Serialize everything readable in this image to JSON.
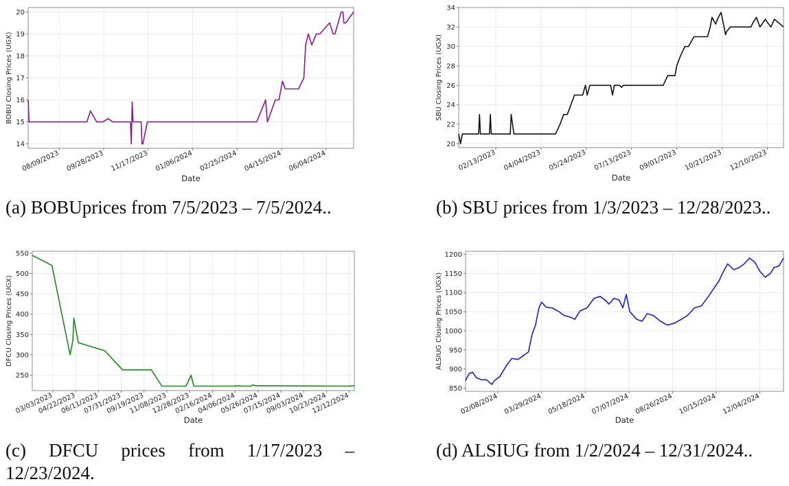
{
  "chart_data": [
    {
      "type": "line",
      "id": "a",
      "caption": "(a) BOBUprices from 7/5/2023 – 7/5/2024..",
      "xlabel": "Date",
      "ylabel": "BOBU Closing Prices (UGX)",
      "color": "#8b1a8b",
      "grid": true,
      "xlim": [
        "2023-07-05",
        "2024-07-05"
      ],
      "ylim": [
        13.8,
        20.2
      ],
      "yticks": [
        14,
        15,
        16,
        17,
        18,
        19,
        20
      ],
      "xticks": [
        "2023-08-09",
        "2023-09-28",
        "2023-11-17",
        "2024-01-06",
        "2024-02-25",
        "2024-04-15",
        "2024-06-04"
      ],
      "xtick_labels": [
        "08/09/2023",
        "09/28/2023",
        "11/17/2023",
        "01/06/2024",
        "02/25/2024",
        "04/15/2024",
        "06/04/2024"
      ],
      "series": [
        {
          "x": [
            "2023-07-05",
            "2023-07-06",
            "2023-07-12",
            "2023-07-20",
            "2023-08-15",
            "2023-09-09",
            "2023-09-13",
            "2023-09-20",
            "2023-09-27",
            "2023-10-03",
            "2023-10-08",
            "2023-10-12",
            "2023-10-16",
            "2023-10-28",
            "2023-10-29",
            "2023-10-30",
            "2023-10-31",
            "2023-11-04",
            "2023-11-09",
            "2023-11-10",
            "2023-11-11",
            "2023-11-16",
            "2023-12-01",
            "2024-01-30",
            "2024-03-18",
            "2024-03-28",
            "2024-03-30",
            "2024-04-08",
            "2024-04-12",
            "2024-04-16",
            "2024-04-19",
            "2024-04-25",
            "2024-04-27",
            "2024-05-04",
            "2024-05-10",
            "2024-05-12",
            "2024-05-15",
            "2024-05-19",
            "2024-05-22",
            "2024-05-24",
            "2024-05-26",
            "2024-05-28",
            "2024-06-08",
            "2024-06-12",
            "2024-06-14",
            "2024-06-21",
            "2024-06-23",
            "2024-06-24",
            "2024-06-26",
            "2024-07-05"
          ],
          "y": [
            16.0,
            15.0,
            15.0,
            15.0,
            15.0,
            15.0,
            15.5,
            15.0,
            15.0,
            15.15,
            15.0,
            15.0,
            15.0,
            15.0,
            14.0,
            15.9,
            15.0,
            15.0,
            15.0,
            14.0,
            14.0,
            15.0,
            15.0,
            15.0,
            15.0,
            16.0,
            15.0,
            16.0,
            16.0,
            16.85,
            16.5,
            16.5,
            16.5,
            16.5,
            17.0,
            18.5,
            19.0,
            18.5,
            18.8,
            19.0,
            19.0,
            19.0,
            19.5,
            19.0,
            19.0,
            20.0,
            20.0,
            19.5,
            19.5,
            20.0
          ]
        }
      ]
    },
    {
      "type": "line",
      "id": "b",
      "caption": "(b) SBU prices from 1/3/2023 – 12/28/2023..",
      "xlabel": "Date",
      "ylabel": "SBU Closing Prices (UGX)",
      "color": "#111111",
      "grid": true,
      "xlim": [
        "2023-01-03",
        "2023-12-28"
      ],
      "ylim": [
        19.6,
        34.0
      ],
      "yticks": [
        20,
        22,
        24,
        26,
        28,
        30,
        32,
        34
      ],
      "xticks": [
        "2023-02-13",
        "2023-04-04",
        "2023-05-24",
        "2023-07-13",
        "2023-09-01",
        "2023-10-21",
        "2023-12-10"
      ],
      "xtick_labels": [
        "02/13/2023",
        "04/04/2023",
        "05/24/2023",
        "07/13/2023",
        "09/01/2023",
        "10/21/2023",
        "12/10/2023"
      ],
      "series": [
        {
          "x": [
            "2023-01-03",
            "2023-01-05",
            "2023-01-07",
            "2023-01-10",
            "2023-01-25",
            "2023-01-26",
            "2023-01-27",
            "2023-02-06",
            "2023-02-07",
            "2023-02-08",
            "2023-03-01",
            "2023-03-02",
            "2023-03-05",
            "2023-04-20",
            "2023-04-25",
            "2023-04-29",
            "2023-05-03",
            "2023-05-11",
            "2023-05-15",
            "2023-05-20",
            "2023-05-23",
            "2023-05-25",
            "2023-05-28",
            "2023-06-05",
            "2023-06-20",
            "2023-06-22",
            "2023-06-24",
            "2023-06-30",
            "2023-07-02",
            "2023-07-04",
            "2023-08-17",
            "2023-08-22",
            "2023-08-30",
            "2023-09-01",
            "2023-09-05",
            "2023-09-10",
            "2023-09-14",
            "2023-09-20",
            "2023-09-22",
            "2023-10-05",
            "2023-10-08",
            "2023-10-10",
            "2023-10-14",
            "2023-10-17",
            "2023-10-20",
            "2023-10-25",
            "2023-10-26",
            "2023-10-30",
            "2023-11-05",
            "2023-11-22",
            "2023-11-24",
            "2023-11-28",
            "2023-12-02",
            "2023-12-08",
            "2023-12-10",
            "2023-12-14",
            "2023-12-18",
            "2023-12-28"
          ],
          "y": [
            21.0,
            20.0,
            21.0,
            21.0,
            21.0,
            23.0,
            21.0,
            21.0,
            23.0,
            21.0,
            21.0,
            23.0,
            21.0,
            21.0,
            22.0,
            23.0,
            23.0,
            25.0,
            25.0,
            25.0,
            26.0,
            25.0,
            26.0,
            26.0,
            26.0,
            25.0,
            26.0,
            26.0,
            25.8,
            26.0,
            26.0,
            27.0,
            27.0,
            28.0,
            29.0,
            30.0,
            30.0,
            31.0,
            31.0,
            31.0,
            32.0,
            33.0,
            32.3,
            33.0,
            33.5,
            31.2,
            31.5,
            32.0,
            32.0,
            32.0,
            32.4,
            33.0,
            32.0,
            32.8,
            32.5,
            32.0,
            32.8,
            32.0
          ]
        }
      ]
    },
    {
      "type": "line",
      "id": "c",
      "caption": "(c) DFCU prices from 1/17/2023 – 12/23/2024.",
      "xlabel": "Date",
      "ylabel": "DFCU Closing Prices (UGX)",
      "color": "#1a8a1a",
      "grid": true,
      "xlim": [
        "2023-01-17",
        "2024-12-23"
      ],
      "ylim": [
        212,
        555
      ],
      "yticks": [
        250,
        300,
        350,
        400,
        450,
        500,
        550
      ],
      "xticks": [
        "2023-03-03",
        "2023-04-22",
        "2023-06-11",
        "2023-07-31",
        "2023-09-19",
        "2023-11-08",
        "2023-12-28",
        "2024-02-16",
        "2024-04-06",
        "2024-05-26",
        "2024-07-15",
        "2024-09-03",
        "2024-10-23",
        "2024-12-12"
      ],
      "xtick_labels": [
        "03/03/2023",
        "04/22/2023",
        "06/11/2023",
        "07/31/2023",
        "09/19/2023",
        "11/08/2023",
        "12/28/2023",
        "02/16/2024",
        "04/06/2024",
        "05/26/2024",
        "07/15/2024",
        "09/03/2024",
        "10/23/2024",
        "12/12/2024"
      ],
      "series": [
        {
          "x": [
            "2023-01-17",
            "2023-03-01",
            "2023-04-10",
            "2023-04-16",
            "2023-04-18",
            "2023-04-28",
            "2023-06-25",
            "2023-08-03",
            "2023-10-05",
            "2023-10-28",
            "2023-12-20",
            "2023-12-31",
            "2024-01-06",
            "2024-04-01",
            "2024-04-15",
            "2024-04-20",
            "2024-05-10",
            "2024-05-15",
            "2024-05-20",
            "2024-12-10",
            "2024-12-18",
            "2024-12-23"
          ],
          "y": [
            545,
            520,
            300,
            335,
            390,
            330,
            310,
            263,
            263,
            223,
            223,
            250,
            223,
            223,
            224,
            223,
            223,
            226,
            224,
            223,
            224,
            223
          ]
        }
      ]
    },
    {
      "type": "line",
      "id": "d",
      "caption": "(d) ALSIUG from 1/2/2024 – 12/31/2024..",
      "xlabel": "Date",
      "ylabel": "ALSIUG Closing Prices (UGX)",
      "color": "#1a1aee",
      "grid": true,
      "xlim": [
        "2024-01-02",
        "2024-12-31"
      ],
      "ylim": [
        842,
        1208
      ],
      "yticks": [
        850,
        900,
        950,
        1000,
        1050,
        1100,
        1150,
        1200
      ],
      "xticks": [
        "2024-02-08",
        "2024-03-29",
        "2024-05-18",
        "2024-07-07",
        "2024-08-26",
        "2024-10-15",
        "2024-12-04"
      ],
      "xtick_labels": [
        "02/08/2024",
        "03/29/2024",
        "05/18/2024",
        "07/07/2024",
        "08/26/2024",
        "10/15/2024",
        "12/04/2024"
      ],
      "series": [
        {
          "x": [
            "2024-01-02",
            "2024-01-06",
            "2024-01-10",
            "2024-01-14",
            "2024-01-20",
            "2024-01-26",
            "2024-02-01",
            "2024-02-04",
            "2024-02-10",
            "2024-02-18",
            "2024-02-24",
            "2024-03-02",
            "2024-03-08",
            "2024-03-14",
            "2024-03-18",
            "2024-03-22",
            "2024-03-26",
            "2024-03-29",
            "2024-04-03",
            "2024-04-10",
            "2024-04-18",
            "2024-04-24",
            "2024-05-02",
            "2024-05-06",
            "2024-05-12",
            "2024-05-20",
            "2024-05-28",
            "2024-06-04",
            "2024-06-10",
            "2024-06-14",
            "2024-06-20",
            "2024-06-26",
            "2024-06-30",
            "2024-07-04",
            "2024-07-08",
            "2024-07-16",
            "2024-07-22",
            "2024-07-28",
            "2024-08-04",
            "2024-08-12",
            "2024-08-20",
            "2024-08-28",
            "2024-09-05",
            "2024-09-12",
            "2024-09-20",
            "2024-09-28",
            "2024-10-06",
            "2024-10-12",
            "2024-10-18",
            "2024-10-22",
            "2024-10-28",
            "2024-11-04",
            "2024-11-10",
            "2024-11-16",
            "2024-11-22",
            "2024-11-28",
            "2024-12-04",
            "2024-12-10",
            "2024-12-16",
            "2024-12-20",
            "2024-12-26",
            "2024-12-31"
          ],
          "y": [
            870,
            888,
            892,
            878,
            872,
            872,
            860,
            870,
            880,
            910,
            928,
            925,
            935,
            945,
            990,
            1015,
            1060,
            1075,
            1062,
            1060,
            1050,
            1040,
            1035,
            1030,
            1052,
            1060,
            1085,
            1090,
            1080,
            1070,
            1085,
            1080,
            1060,
            1095,
            1050,
            1030,
            1025,
            1045,
            1040,
            1025,
            1015,
            1020,
            1030,
            1040,
            1060,
            1065,
            1090,
            1110,
            1130,
            1150,
            1175,
            1160,
            1165,
            1175,
            1190,
            1180,
            1155,
            1140,
            1150,
            1165,
            1170,
            1190
          ]
        }
      ]
    }
  ]
}
